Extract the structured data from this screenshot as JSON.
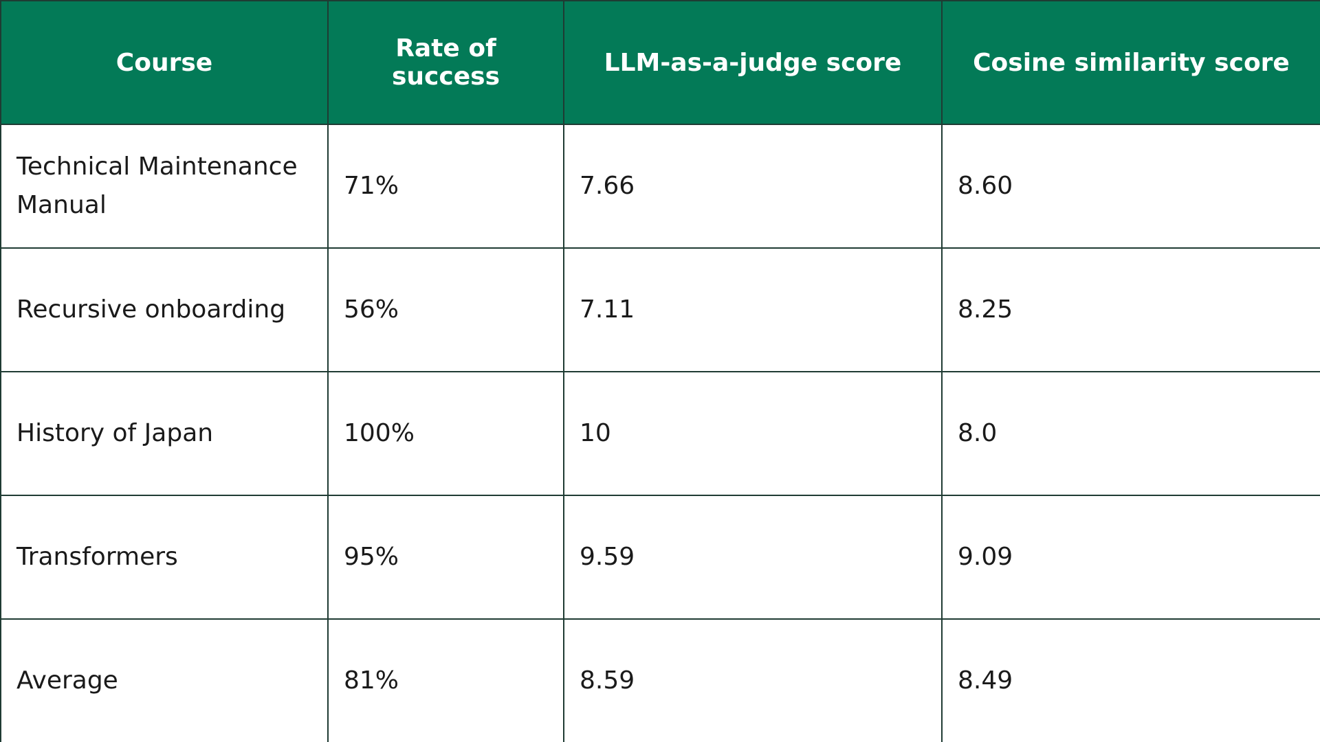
{
  "colors": {
    "header_bg": "#037a57",
    "header_text": "#ffffff",
    "border": "#1f3b33",
    "cell_bg": "#ffffff"
  },
  "table": {
    "headers": [
      "Course",
      "Rate of success",
      "LLM-as-a-judge score",
      "Cosine similarity score"
    ],
    "rows": [
      [
        "Technical Maintenance Manual",
        "71%",
        "7.66",
        "8.60"
      ],
      [
        "Recursive onboarding",
        "56%",
        "7.11",
        "8.25"
      ],
      [
        "History of Japan",
        "100%",
        "10",
        "8.0"
      ],
      [
        "Transformers",
        "95%",
        "9.59",
        "9.09"
      ],
      [
        "Average",
        "81%",
        "8.59",
        "8.49"
      ]
    ]
  }
}
